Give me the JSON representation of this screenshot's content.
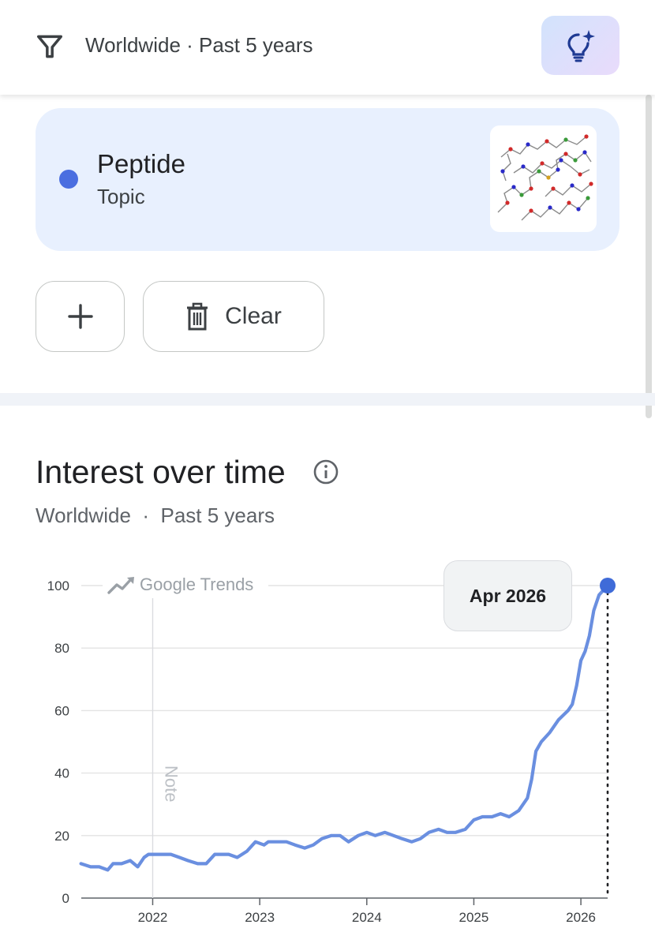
{
  "header": {
    "filter_text": "Worldwide · Past 5 years",
    "icons": {
      "filter": "filter-funnel-icon",
      "ai": "lightbulb-sparkle-icon"
    }
  },
  "term": {
    "name": "Peptide",
    "type": "Topic",
    "color": "#4a6ee0"
  },
  "actions": {
    "add_icon": "plus-icon",
    "clear_label": "Clear",
    "clear_icon": "trash-icon"
  },
  "section": {
    "title": "Interest over time",
    "region": "Worldwide",
    "separator": "·",
    "period": "Past 5 years",
    "info_icon": "info-icon"
  },
  "chart_data": {
    "type": "line",
    "watermark": "Google Trends",
    "note_label": "Note",
    "tooltip_label": "Apr 2026",
    "y_ticks": [
      "0",
      "20",
      "40",
      "60",
      "80",
      "100"
    ],
    "x_ticks": [
      "2022",
      "2023",
      "2024",
      "2025",
      "2026"
    ],
    "ylim": [
      0,
      100
    ],
    "xlim": [
      2021.333,
      2026.25
    ],
    "grid": true,
    "series": [
      {
        "color": "#6a8fe0",
        "x": [
          2021.33,
          2021.42,
          2021.5,
          2021.58,
          2021.63,
          2021.71,
          2021.79,
          2021.86,
          2021.92,
          2021.96,
          2022.0,
          2022.08,
          2022.17,
          2022.25,
          2022.33,
          2022.42,
          2022.5,
          2022.58,
          2022.63,
          2022.71,
          2022.79,
          2022.88,
          2022.96,
          2023.04,
          2023.08,
          2023.17,
          2023.25,
          2023.33,
          2023.42,
          2023.5,
          2023.58,
          2023.67,
          2023.75,
          2023.83,
          2023.92,
          2024.0,
          2024.08,
          2024.17,
          2024.25,
          2024.33,
          2024.42,
          2024.5,
          2024.58,
          2024.67,
          2024.75,
          2024.83,
          2024.92,
          2025.0,
          2025.08,
          2025.17,
          2025.25,
          2025.33,
          2025.42,
          2025.5,
          2025.54,
          2025.58,
          2025.63,
          2025.71,
          2025.79,
          2025.88,
          2025.92,
          2025.96,
          2026.0,
          2026.04,
          2026.08,
          2026.12,
          2026.17,
          2026.25
        ],
        "values": [
          11,
          10,
          10,
          9,
          11,
          11,
          12,
          10,
          13,
          14,
          14,
          14,
          14,
          13,
          12,
          11,
          11,
          14,
          14,
          14,
          13,
          15,
          18,
          17,
          18,
          18,
          18,
          17,
          16,
          17,
          19,
          20,
          20,
          18,
          20,
          21,
          20,
          21,
          20,
          19,
          18,
          19,
          21,
          22,
          21,
          21,
          22,
          25,
          26,
          26,
          27,
          26,
          28,
          32,
          38,
          47,
          50,
          53,
          57,
          60,
          62,
          68,
          76,
          79,
          84,
          92,
          97,
          100
        ]
      }
    ]
  }
}
